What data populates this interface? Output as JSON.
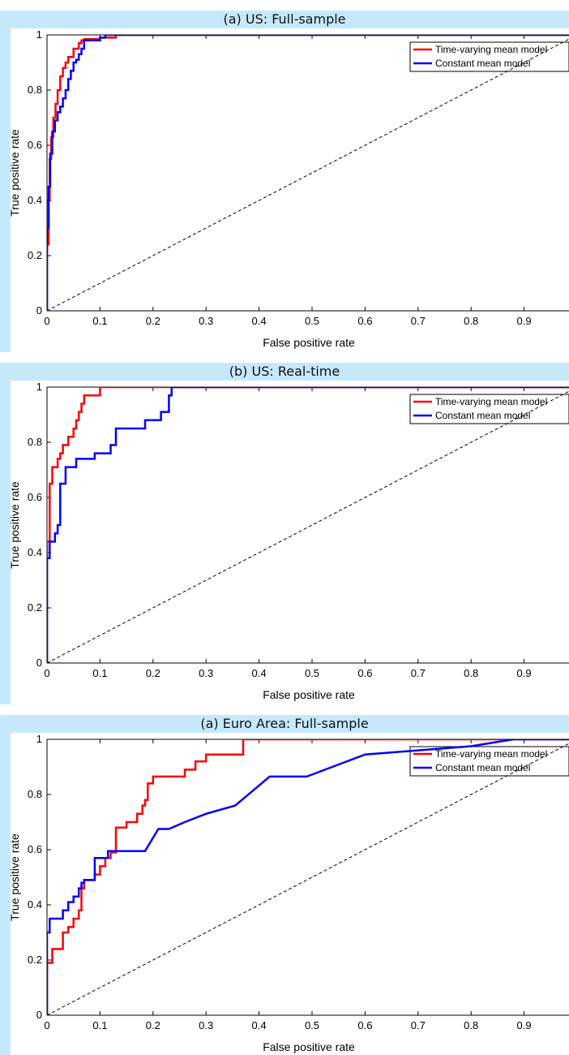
{
  "colors": {
    "band": "#c5e9fb",
    "time_varying": "#ff0000",
    "constant": "#0000ff",
    "diagonal": "#000000"
  },
  "chart_data": [
    {
      "type": "line",
      "title": "(a) US: Full-sample",
      "xlabel": "False positive rate",
      "ylabel": "True positive rate",
      "xlim": [
        0,
        1
      ],
      "ylim": [
        0,
        1
      ],
      "xticks": [
        "0",
        "0.1",
        "0.2",
        "0.3",
        "0.4",
        "0.5",
        "0.6",
        "0.7",
        "0.8",
        "0.9"
      ],
      "yticks": [
        "0",
        "0.2",
        "0.4",
        "0.6",
        "0.8",
        "1"
      ],
      "legend_position": "top-right",
      "reference_line": "diagonal (dashed)",
      "series": [
        {
          "name": "Time-varying mean model",
          "color": "#ff0000",
          "x": [
            0,
            0,
            0.003,
            0.003,
            0.005,
            0.005,
            0.008,
            0.008,
            0.012,
            0.012,
            0.016,
            0.016,
            0.02,
            0.02,
            0.025,
            0.025,
            0.03,
            0.03,
            0.035,
            0.035,
            0.04,
            0.04,
            0.05,
            0.05,
            0.06,
            0.06,
            0.065,
            0.065,
            0.07,
            0.07,
            0.1,
            0.1,
            0.13,
            0.13,
            1
          ],
          "y": [
            0,
            0.24,
            0.24,
            0.4,
            0.4,
            0.55,
            0.55,
            0.63,
            0.63,
            0.7,
            0.7,
            0.75,
            0.75,
            0.8,
            0.8,
            0.85,
            0.85,
            0.88,
            0.88,
            0.9,
            0.9,
            0.92,
            0.92,
            0.95,
            0.95,
            0.97,
            0.97,
            0.98,
            0.98,
            0.985,
            0.985,
            0.99,
            0.99,
            1,
            1
          ]
        },
        {
          "name": "Constant mean model",
          "color": "#0000ff",
          "x": [
            0,
            0,
            0.003,
            0.003,
            0.006,
            0.006,
            0.01,
            0.01,
            0.015,
            0.015,
            0.02,
            0.02,
            0.025,
            0.025,
            0.03,
            0.03,
            0.035,
            0.035,
            0.04,
            0.04,
            0.045,
            0.045,
            0.05,
            0.05,
            0.055,
            0.055,
            0.06,
            0.06,
            0.065,
            0.065,
            0.07,
            0.07,
            0.1,
            0.1,
            0.11,
            0.11,
            1
          ],
          "y": [
            0,
            0.3,
            0.3,
            0.45,
            0.45,
            0.57,
            0.57,
            0.65,
            0.65,
            0.69,
            0.69,
            0.72,
            0.72,
            0.74,
            0.74,
            0.77,
            0.77,
            0.8,
            0.8,
            0.84,
            0.84,
            0.87,
            0.87,
            0.9,
            0.9,
            0.91,
            0.91,
            0.93,
            0.93,
            0.95,
            0.95,
            0.98,
            0.98,
            0.99,
            0.99,
            1,
            1
          ]
        }
      ]
    },
    {
      "type": "line",
      "title": "(b) US: Real-time",
      "xlabel": "False positive rate",
      "ylabel": "True positive rate",
      "xlim": [
        0,
        1
      ],
      "ylim": [
        0,
        1
      ],
      "xticks": [
        "0",
        "0.1",
        "0.2",
        "0.3",
        "0.4",
        "0.5",
        "0.6",
        "0.7",
        "0.8",
        "0.9"
      ],
      "yticks": [
        "0",
        "0.2",
        "0.4",
        "0.6",
        "0.8",
        "1"
      ],
      "legend_position": "top-right",
      "reference_line": "diagonal (dashed)",
      "series": [
        {
          "name": "Time-varying mean model",
          "color": "#ff0000",
          "x": [
            0,
            0,
            0.005,
            0.005,
            0.01,
            0.01,
            0.02,
            0.02,
            0.025,
            0.025,
            0.03,
            0.03,
            0.04,
            0.04,
            0.05,
            0.05,
            0.055,
            0.055,
            0.06,
            0.06,
            0.065,
            0.065,
            0.07,
            0.07,
            0.1,
            0.1,
            1
          ],
          "y": [
            0,
            0.44,
            0.44,
            0.65,
            0.65,
            0.71,
            0.71,
            0.74,
            0.74,
            0.76,
            0.76,
            0.79,
            0.79,
            0.82,
            0.82,
            0.85,
            0.85,
            0.88,
            0.88,
            0.91,
            0.91,
            0.94,
            0.94,
            0.97,
            0.97,
            1,
            1
          ]
        },
        {
          "name": "Constant mean model",
          "color": "#0000ff",
          "x": [
            0,
            0,
            0.005,
            0.005,
            0.015,
            0.015,
            0.02,
            0.02,
            0.025,
            0.025,
            0.035,
            0.035,
            0.055,
            0.055,
            0.09,
            0.09,
            0.12,
            0.12,
            0.13,
            0.13,
            0.185,
            0.185,
            0.215,
            0.215,
            0.23,
            0.23,
            0.235,
            0.235,
            1
          ],
          "y": [
            0,
            0.38,
            0.38,
            0.44,
            0.44,
            0.47,
            0.47,
            0.5,
            0.5,
            0.65,
            0.65,
            0.71,
            0.71,
            0.74,
            0.74,
            0.76,
            0.76,
            0.79,
            0.79,
            0.85,
            0.85,
            0.88,
            0.88,
            0.91,
            0.91,
            0.97,
            0.97,
            1,
            1
          ]
        }
      ]
    },
    {
      "type": "line",
      "title": "(a) Euro Area: Full-sample",
      "xlabel": "False positive rate",
      "ylabel": "True positive rate",
      "xlim": [
        0,
        1
      ],
      "ylim": [
        0,
        1
      ],
      "xticks": [
        "0",
        "0.1",
        "0.2",
        "0.3",
        "0.4",
        "0.5",
        "0.6",
        "0.7",
        "0.8",
        "0.9"
      ],
      "yticks": [
        "0",
        "0.2",
        "0.4",
        "0.6",
        "0.8",
        "1"
      ],
      "legend_position": "top-right",
      "reference_line": "diagonal (dashed)",
      "series": [
        {
          "name": "Time-varying mean model",
          "color": "#ff0000",
          "x": [
            0,
            0,
            0.01,
            0.01,
            0.03,
            0.03,
            0.04,
            0.04,
            0.05,
            0.05,
            0.06,
            0.06,
            0.065,
            0.065,
            0.07,
            0.07,
            0.09,
            0.09,
            0.1,
            0.1,
            0.11,
            0.11,
            0.12,
            0.12,
            0.13,
            0.13,
            0.15,
            0.15,
            0.17,
            0.17,
            0.18,
            0.18,
            0.185,
            0.185,
            0.19,
            0.19,
            0.2,
            0.2,
            0.26,
            0.26,
            0.28,
            0.28,
            0.3,
            0.3,
            0.37,
            0.37,
            1
          ],
          "y": [
            0,
            0.19,
            0.19,
            0.24,
            0.24,
            0.3,
            0.3,
            0.32,
            0.32,
            0.35,
            0.35,
            0.38,
            0.38,
            0.46,
            0.46,
            0.49,
            0.49,
            0.51,
            0.51,
            0.54,
            0.54,
            0.57,
            0.57,
            0.59,
            0.59,
            0.68,
            0.68,
            0.7,
            0.7,
            0.73,
            0.73,
            0.76,
            0.76,
            0.78,
            0.78,
            0.84,
            0.84,
            0.865,
            0.865,
            0.89,
            0.89,
            0.92,
            0.92,
            0.945,
            0.945,
            1,
            1
          ]
        },
        {
          "name": "Constant mean model",
          "color": "#0000ff",
          "x": [
            0,
            0,
            0.005,
            0.005,
            0.03,
            0.03,
            0.04,
            0.04,
            0.05,
            0.05,
            0.06,
            0.06,
            0.065,
            0.065,
            0.07,
            0.07,
            0.09,
            0.09,
            0.1,
            0.1,
            0.115,
            0.115,
            0.185,
            0.21,
            0.21,
            0.23,
            0.26,
            0.3,
            0.355,
            0.42,
            0.42,
            0.49,
            0.6,
            0.7,
            0.8,
            0.88,
            1
          ],
          "y": [
            0,
            0.3,
            0.3,
            0.35,
            0.35,
            0.38,
            0.38,
            0.41,
            0.41,
            0.43,
            0.43,
            0.46,
            0.46,
            0.48,
            0.48,
            0.49,
            0.49,
            0.57,
            0.57,
            0.57,
            0.57,
            0.595,
            0.595,
            0.675,
            0.675,
            0.675,
            0.7,
            0.73,
            0.76,
            0.865,
            0.865,
            0.865,
            0.945,
            0.96,
            0.975,
            1,
            1
          ]
        }
      ]
    }
  ]
}
